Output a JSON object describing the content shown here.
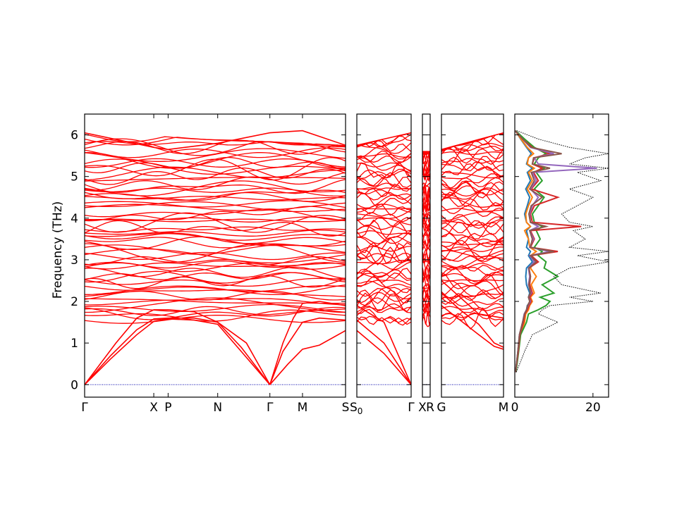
{
  "chart_data": {
    "type": "line",
    "ylabel": "Frequency (THz)",
    "ylim": [
      -0.3,
      6.5
    ],
    "y_ticks": [
      "0",
      "1",
      "2",
      "3",
      "4",
      "5",
      "6"
    ],
    "line_color": "#ff0000",
    "zero_line_color": "#0000aa",
    "segments": [
      {
        "path_labels": [
          "Γ",
          "X",
          "P",
          "N",
          "Γ",
          "M",
          "S"
        ],
        "x_positions": [
          0,
          0.265,
          0.32,
          0.51,
          0.71,
          0.835,
          1.0
        ],
        "acoustic_branches": [
          {
            "x": [
              0,
              0.1,
              0.2,
              0.265,
              0.32,
              0.42,
              0.51,
              0.6,
              0.71
            ],
            "y": [
              0,
              0.62,
              1.2,
              1.52,
              1.58,
              1.55,
              1.45,
              0.8,
              0
            ]
          },
          {
            "x": [
              0,
              0.1,
              0.2,
              0.265,
              0.32,
              0.42,
              0.51,
              0.6,
              0.71
            ],
            "y": [
              0,
              0.7,
              1.32,
              1.58,
              1.6,
              1.6,
              1.5,
              0.9,
              0
            ]
          },
          {
            "x": [
              0,
              0.12,
              0.2,
              0.265,
              0.32,
              0.42,
              0.51,
              0.62,
              0.71
            ],
            "y": [
              0,
              1.0,
              1.6,
              1.8,
              1.8,
              1.75,
              1.5,
              1.0,
              0
            ]
          },
          {
            "x": [
              0.71,
              0.78,
              0.835,
              0.9,
              1.0
            ],
            "y": [
              0,
              0.5,
              0.85,
              0.95,
              1.3
            ]
          },
          {
            "x": [
              0.71,
              0.76,
              0.835,
              0.9,
              1.0
            ],
            "y": [
              0,
              0.8,
              1.5,
              1.6,
              1.55
            ]
          },
          {
            "x": [
              0.71,
              0.76,
              0.8,
              0.835,
              0.9,
              1.0
            ],
            "y": [
              0,
              1.0,
              1.6,
              1.95,
              2.0,
              1.9
            ]
          }
        ],
        "band_top": [
          6.05,
          5.7,
          5.65,
          5.8,
          6.05,
          6.1,
          5.75
        ]
      },
      {
        "path_labels": [
          "S0",
          "Γ"
        ],
        "x_positions": [
          0,
          1.0
        ],
        "acoustic_branches": [
          {
            "x": [
              0,
              0.5,
              1.0
            ],
            "y": [
              1.3,
              0.75,
              0
            ]
          },
          {
            "x": [
              0,
              0.5,
              1.0
            ],
            "y": [
              1.55,
              1.0,
              0
            ]
          },
          {
            "x": [
              0,
              0.5,
              1.0
            ],
            "y": [
              1.9,
              1.5,
              0
            ]
          }
        ],
        "band_top": [
          5.75,
          6.05
        ]
      },
      {
        "path_labels": [
          "X",
          "R"
        ],
        "x_positions": [
          0,
          1.0
        ],
        "acoustic_branches": [],
        "band_top": [
          5.6,
          5.6
        ]
      },
      {
        "path_labels": [
          "G",
          "M"
        ],
        "x_positions": [
          0,
          1.0
        ],
        "acoustic_branches": [
          {
            "x": [
              0,
              0.3,
              0.6,
              0.85,
              1.0
            ],
            "y": [
              1.9,
              1.55,
              1.2,
              0.92,
              0.85
            ]
          },
          {
            "x": [
              0,
              0.3,
              0.6,
              0.85,
              1.0
            ],
            "y": [
              2.2,
              1.8,
              1.45,
              1.0,
              0.9
            ]
          },
          {
            "x": [
              0,
              0.3,
              0.6,
              1.0
            ],
            "y": [
              2.5,
              2.1,
              1.7,
              1.6
            ]
          }
        ],
        "band_top": [
          5.65,
          6.05
        ]
      }
    ],
    "dos": {
      "x_ticks": [
        "0",
        "20"
      ],
      "xlim": [
        0,
        24
      ],
      "total_color": "#000000",
      "partial_colors": [
        "#1f77b4",
        "#ff7f0e",
        "#2ca02c",
        "#d62728",
        "#9467bd",
        "#8c564b"
      ],
      "freq": [
        0.3,
        0.8,
        1.2,
        1.5,
        1.7,
        1.8,
        1.9,
        2.0,
        2.1,
        2.2,
        2.4,
        2.6,
        2.8,
        2.95,
        3.1,
        3.2,
        3.3,
        3.5,
        3.7,
        3.8,
        3.9,
        4.1,
        4.3,
        4.5,
        4.7,
        4.9,
        5.1,
        5.2,
        5.3,
        5.45,
        5.55,
        5.7,
        5.9,
        6.1
      ],
      "total": [
        0.4,
        2.5,
        4.5,
        11.0,
        6.0,
        7.0,
        9.0,
        20.0,
        14.0,
        22.0,
        12.0,
        10.0,
        14.0,
        24.0,
        16.0,
        24.0,
        14.0,
        18.0,
        15.0,
        20.0,
        14.0,
        12.0,
        16.0,
        20.0,
        14.0,
        22.0,
        16.0,
        24.0,
        14.0,
        18.0,
        24.0,
        14.0,
        6.0,
        0.5
      ],
      "partial": [
        [
          0.2,
          0.8,
          1.2,
          2.0,
          2.5,
          3.0,
          3.2,
          4.0,
          3.5,
          3.8,
          3.0,
          2.8,
          3.0,
          4.5,
          3.5,
          4.0,
          3.0,
          3.5,
          3.0,
          4.0,
          3.0,
          2.5,
          3.2,
          3.8,
          2.8,
          4.0,
          3.2,
          4.5,
          3.0,
          3.5,
          4.2,
          3.0,
          1.5,
          0.1
        ],
        [
          0.2,
          0.9,
          1.3,
          2.5,
          2.8,
          3.5,
          3.8,
          4.5,
          4.0,
          5.0,
          4.2,
          5.5,
          4.0,
          5.0,
          4.0,
          5.5,
          3.8,
          3.5,
          2.5,
          4.0,
          3.0,
          2.8,
          3.5,
          4.5,
          3.2,
          4.5,
          3.5,
          5.0,
          3.2,
          3.5,
          4.8,
          3.2,
          1.6,
          0.1
        ],
        [
          0.3,
          1.0,
          1.5,
          3.0,
          3.5,
          6.0,
          8.0,
          9.0,
          6.5,
          10.0,
          7.0,
          11.0,
          7.5,
          8.0,
          6.0,
          7.0,
          5.0,
          6.5,
          5.5,
          7.0,
          5.0,
          4.5,
          6.0,
          7.5,
          5.0,
          7.0,
          5.5,
          7.5,
          5.0,
          6.0,
          8.0,
          5.0,
          2.5,
          0.2
        ],
        [
          0.2,
          0.9,
          1.3,
          2.2,
          2.6,
          3.2,
          3.6,
          4.2,
          3.8,
          4.5,
          3.8,
          4.0,
          3.6,
          6.0,
          4.2,
          11.0,
          4.0,
          5.0,
          4.0,
          17.0,
          4.5,
          4.0,
          5.0,
          11.0,
          4.2,
          6.0,
          4.8,
          7.0,
          4.5,
          5.0,
          9.0,
          4.5,
          2.0,
          0.1
        ],
        [
          0.2,
          0.8,
          1.2,
          2.0,
          2.4,
          3.0,
          3.4,
          4.0,
          3.5,
          4.2,
          3.5,
          3.8,
          3.5,
          5.0,
          3.8,
          9.0,
          3.8,
          4.8,
          3.8,
          6.0,
          4.0,
          3.8,
          4.5,
          6.0,
          4.0,
          5.5,
          4.5,
          21.0,
          6.0,
          5.0,
          10.0,
          4.0,
          2.0,
          0.1
        ],
        [
          0.2,
          0.8,
          1.2,
          2.0,
          2.5,
          3.0,
          3.3,
          3.8,
          3.5,
          4.0,
          3.6,
          4.0,
          3.6,
          5.5,
          4.0,
          10.0,
          4.0,
          4.5,
          3.8,
          8.0,
          4.0,
          3.6,
          4.2,
          7.0,
          3.8,
          5.0,
          4.2,
          9.0,
          4.5,
          4.8,
          12.0,
          4.2,
          2.0,
          0.1
        ]
      ]
    }
  }
}
